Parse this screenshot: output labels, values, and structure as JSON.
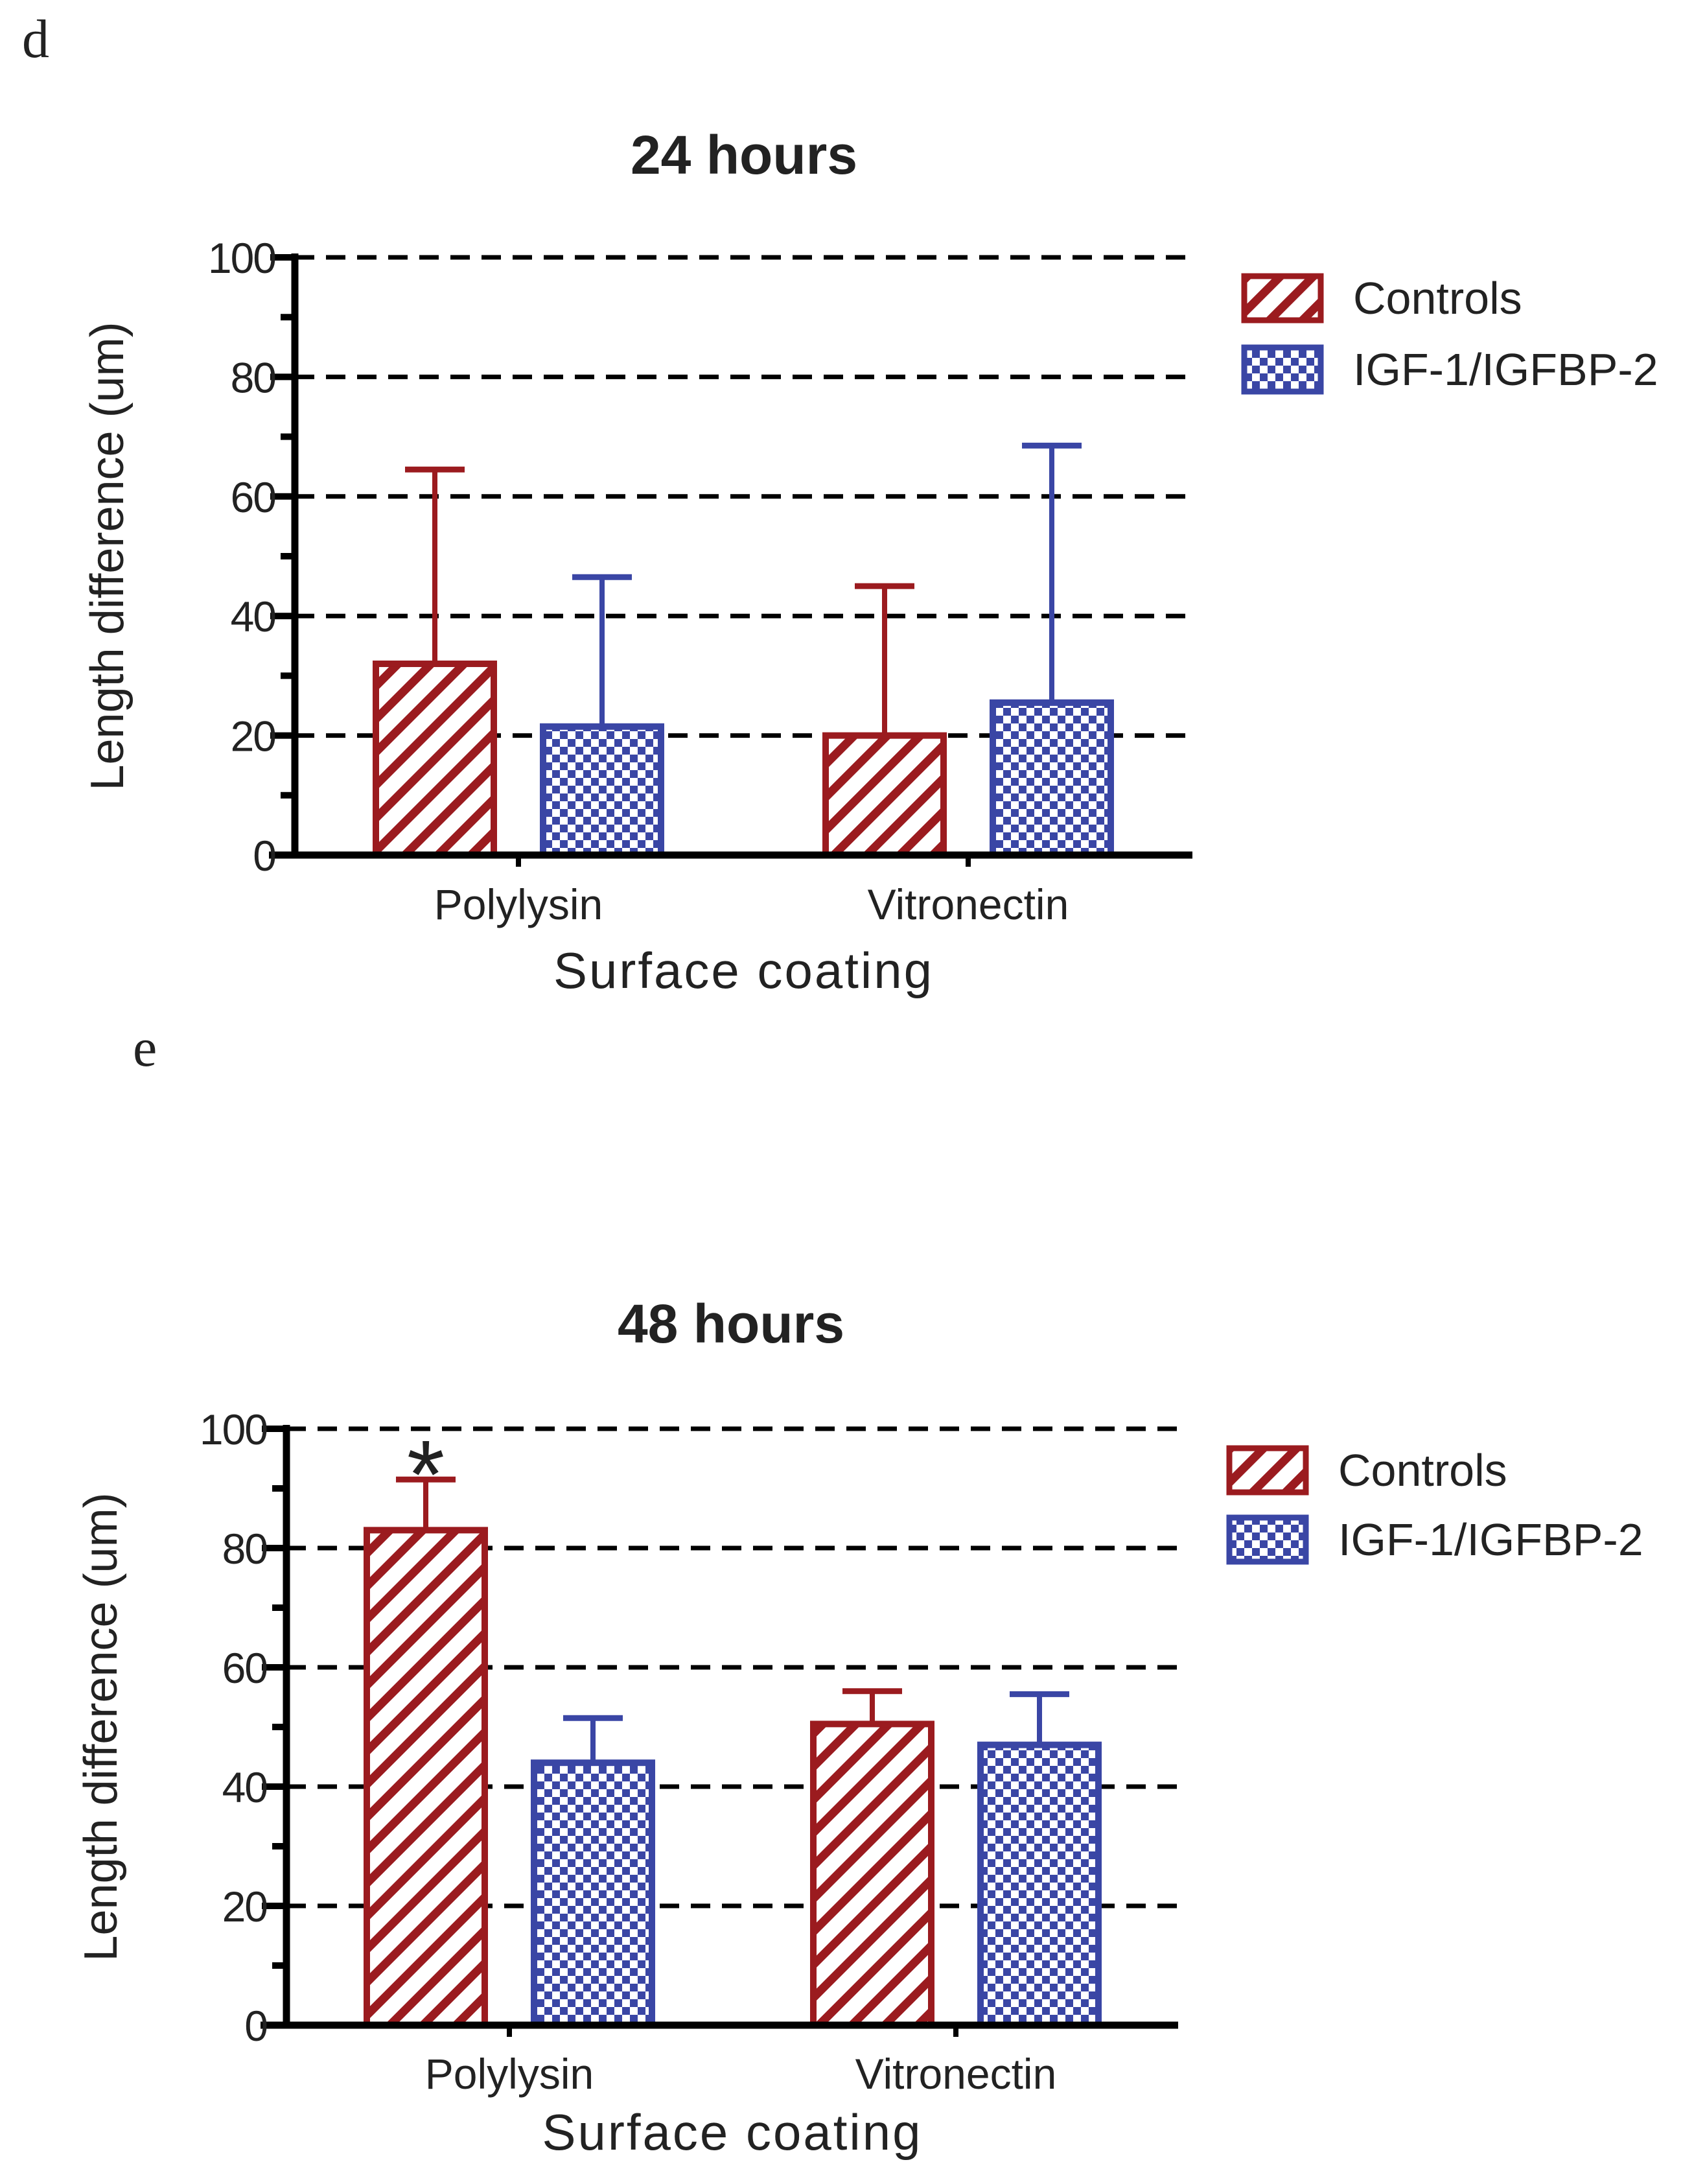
{
  "colors": {
    "controls": "#9b1b1f",
    "igf": "#3a46a5",
    "axis": "#000000",
    "text": "#222222"
  },
  "legend_patterns": {
    "controls": "diagonal-hatch",
    "igf": "checkerboard"
  },
  "chart_data": [
    {
      "type": "bar",
      "panel_label": "d",
      "title": "24 hours",
      "xlabel": "Surface coating",
      "ylabel": "Length difference (um)",
      "ylim": [
        0,
        100
      ],
      "yticks": [
        "0",
        "20",
        "40",
        "60",
        "80",
        "100"
      ],
      "grid": "dashed horizontal at major ticks",
      "legend_position": "right",
      "categories": [
        "Polylysin",
        "Vitronectin"
      ],
      "series": [
        {
          "name": "Controls",
          "values": [
            32,
            20
          ],
          "errors": [
            32.5,
            25
          ]
        },
        {
          "name": "IGF-1/IGFBP-2",
          "values": [
            21.5,
            25.5
          ],
          "errors": [
            25,
            43
          ]
        }
      ],
      "annotations": []
    },
    {
      "type": "bar",
      "panel_label": "e",
      "title": "48 hours",
      "xlabel": "Surface coating",
      "ylabel": "Length difference (um)",
      "ylim": [
        0,
        100
      ],
      "yticks": [
        "0",
        "20",
        "40",
        "60",
        "80",
        "100"
      ],
      "grid": "dashed horizontal at major ticks",
      "legend_position": "right",
      "categories": [
        "Polylysin",
        "Vitronectin"
      ],
      "series": [
        {
          "name": "Controls",
          "values": [
            83,
            50.5
          ],
          "errors": [
            8.5,
            5.5
          ]
        },
        {
          "name": "IGF-1/IGFBP-2",
          "values": [
            44,
            47
          ],
          "errors": [
            7.5,
            8.5
          ]
        }
      ],
      "annotations": [
        {
          "text": "*",
          "category": "Polylysin",
          "series": "Controls"
        }
      ]
    }
  ]
}
